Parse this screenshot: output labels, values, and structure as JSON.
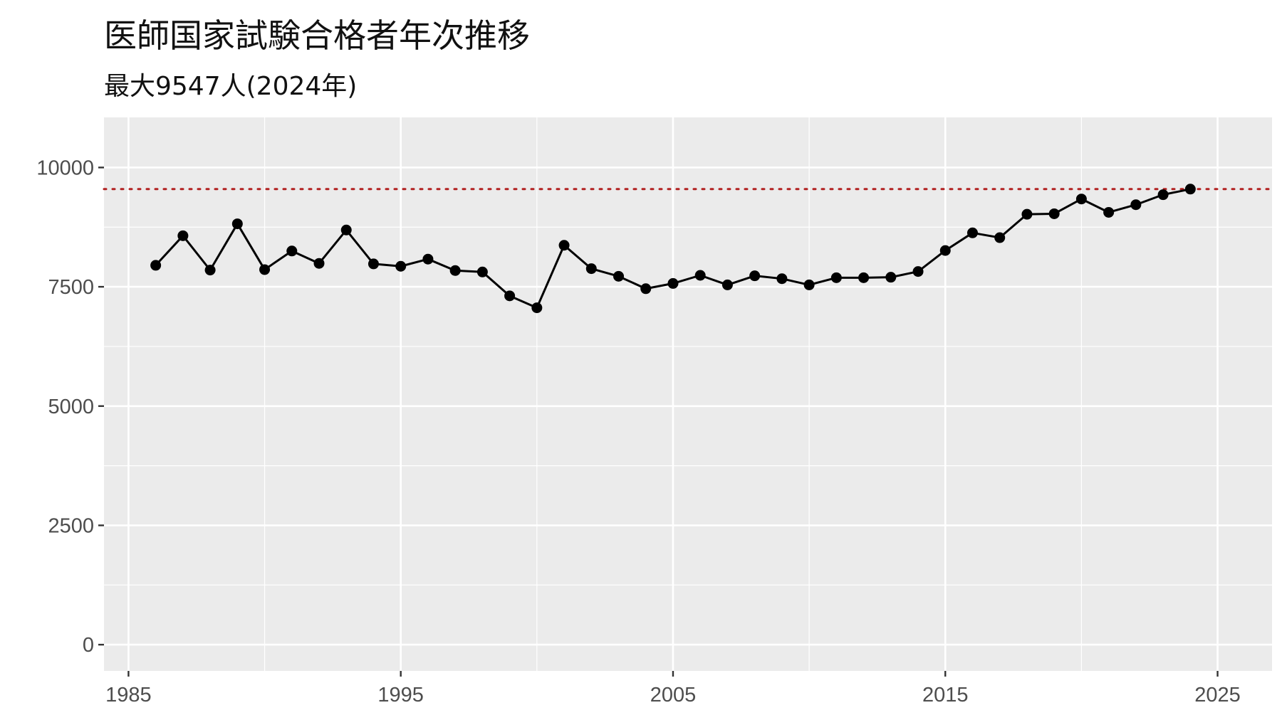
{
  "chart_data": {
    "type": "line",
    "title": "医師国家試験合格者年次推移",
    "subtitle": "最大9547人(2024年)",
    "xlabel": "",
    "ylabel": "",
    "xlim": [
      1984.1,
      2027.0
    ],
    "ylim": [
      -550,
      11050
    ],
    "x_ticks": [
      1985,
      1995,
      2005,
      2015,
      2025
    ],
    "y_ticks": [
      0,
      2500,
      5000,
      7500,
      10000
    ],
    "grid": true,
    "reference_line": {
      "y": 9547,
      "style": "dotted",
      "color": "#b22222"
    },
    "line_color": "#000000",
    "panel_color": "#ebebeb",
    "grid_color": "#ffffff",
    "series": [
      {
        "x": [
          1986,
          1987,
          1988,
          1989,
          1990,
          1991,
          1992,
          1993,
          1994,
          1995,
          1996,
          1997,
          1998,
          1999,
          2000,
          2001,
          2002,
          2003,
          2004,
          2005,
          2006,
          2007,
          2008,
          2009,
          2010,
          2011,
          2012,
          2013,
          2014,
          2015,
          2016,
          2017,
          2018,
          2019,
          2020,
          2021,
          2022,
          2023,
          2024
        ],
        "values": [
          7950,
          8570,
          7850,
          8820,
          7860,
          8250,
          7990,
          8690,
          7980,
          7930,
          8080,
          7840,
          7810,
          7310,
          7060,
          8370,
          7880,
          7720,
          7460,
          7570,
          7740,
          7540,
          7730,
          7670,
          7540,
          7690,
          7690,
          7700,
          7820,
          8260,
          8630,
          8530,
          9020,
          9030,
          9340,
          9060,
          9220,
          9430,
          9547
        ]
      }
    ]
  }
}
